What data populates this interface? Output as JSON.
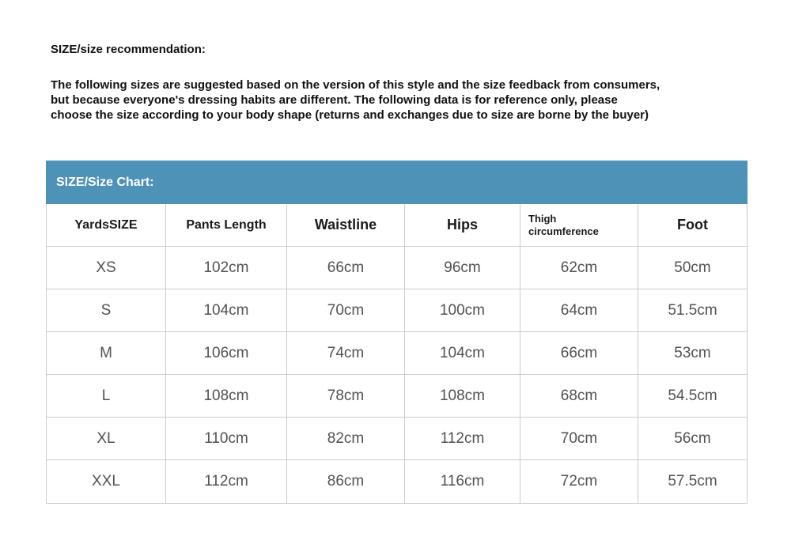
{
  "colors": {
    "banner_bg": "#4E92B8",
    "banner_text": "#FFFFFF",
    "grid_line": "#CCCCCC",
    "header_text": "#1A1A1A",
    "data_text": "#525252",
    "body_text": "#111111"
  },
  "recommendation": {
    "title": "SIZE/size recommendation:",
    "body": "The following sizes are suggested based on the version of this style and the size feedback from consumers,\nbut because everyone's dressing habits are different. The following data is for reference only, please\nchoose the size according to your body shape (returns and exchanges due to size are borne by the buyer)"
  },
  "size_chart": {
    "banner": "SIZE/Size Chart:",
    "columns": [
      "YardsSIZE",
      "Pants Length",
      "Waistline",
      "Hips",
      "Thigh circumference",
      "Foot"
    ],
    "rows": [
      [
        "XS",
        "102cm",
        "66cm",
        "96cm",
        "62cm",
        "50cm"
      ],
      [
        "S",
        "104cm",
        "70cm",
        "100cm",
        "64cm",
        "51.5cm"
      ],
      [
        "M",
        "106cm",
        "74cm",
        "104cm",
        "66cm",
        "53cm"
      ],
      [
        "L",
        "108cm",
        "78cm",
        "108cm",
        "68cm",
        "54.5cm"
      ],
      [
        "XL",
        "110cm",
        "82cm",
        "112cm",
        "70cm",
        "56cm"
      ],
      [
        "XXL",
        "112cm",
        "86cm",
        "116cm",
        "72cm",
        "57.5cm"
      ]
    ]
  }
}
